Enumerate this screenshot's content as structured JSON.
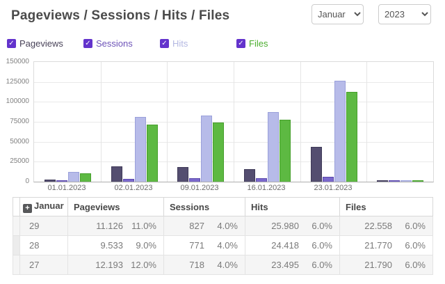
{
  "header": {
    "title": "Pageviews / Sessions / Hits / Files",
    "month": "Januar",
    "year": "2023"
  },
  "legend": {
    "checkbox_color": "#6333cc",
    "check_glyph": "✓",
    "items": [
      {
        "label": "Pageviews",
        "color": "#494359",
        "checked": true
      },
      {
        "label": "Sessions",
        "color": "#6d53b8",
        "checked": true
      },
      {
        "label": "Hits",
        "color": "#b4b8e2",
        "checked": true
      },
      {
        "label": "Files",
        "color": "#4cae2f",
        "checked": true
      }
    ]
  },
  "chart_data": {
    "type": "bar",
    "categories": [
      "01.01.2023",
      "02.01.2023",
      "09.01.2023",
      "16.01.2023",
      "23.01.2023",
      ""
    ],
    "series": [
      {
        "name": "Pageviews",
        "fill": "#544e70",
        "border": "#3e3957",
        "values": [
          3000,
          19500,
          18000,
          16000,
          43500,
          1500
        ]
      },
      {
        "name": "Sessions",
        "fill": "#7a68cc",
        "border": "#5a48ab",
        "values": [
          1100,
          3900,
          4000,
          4200,
          6000,
          900
        ]
      },
      {
        "name": "Hits",
        "fill": "#b7bbe9",
        "border": "#9aa0da",
        "values": [
          12000,
          81500,
          82500,
          87000,
          126500,
          1800
        ]
      },
      {
        "name": "Files",
        "fill": "#5db942",
        "border": "#459f2b",
        "values": [
          10500,
          71500,
          74000,
          78000,
          112500,
          1500
        ]
      }
    ],
    "ylim": [
      0,
      150000
    ],
    "ytick_step": 25000,
    "grid": true,
    "legend_position": "top"
  },
  "table": {
    "expand_icon": "+",
    "group_label": "Januar",
    "columns": [
      "Pageviews",
      "Sessions",
      "Hits",
      "Files"
    ],
    "rows": [
      {
        "day": "29",
        "cells": [
          [
            "11.126",
            "11.0%"
          ],
          [
            "827",
            "4.0%"
          ],
          [
            "25.980",
            "6.0%"
          ],
          [
            "22.558",
            "6.0%"
          ]
        ]
      },
      {
        "day": "28",
        "cells": [
          [
            "9.533",
            "9.0%"
          ],
          [
            "771",
            "4.0%"
          ],
          [
            "24.418",
            "6.0%"
          ],
          [
            "21.770",
            "6.0%"
          ]
        ]
      },
      {
        "day": "27",
        "cells": [
          [
            "12.193",
            "12.0%"
          ],
          [
            "718",
            "4.0%"
          ],
          [
            "23.495",
            "6.0%"
          ],
          [
            "21.790",
            "6.0%"
          ]
        ]
      }
    ]
  }
}
